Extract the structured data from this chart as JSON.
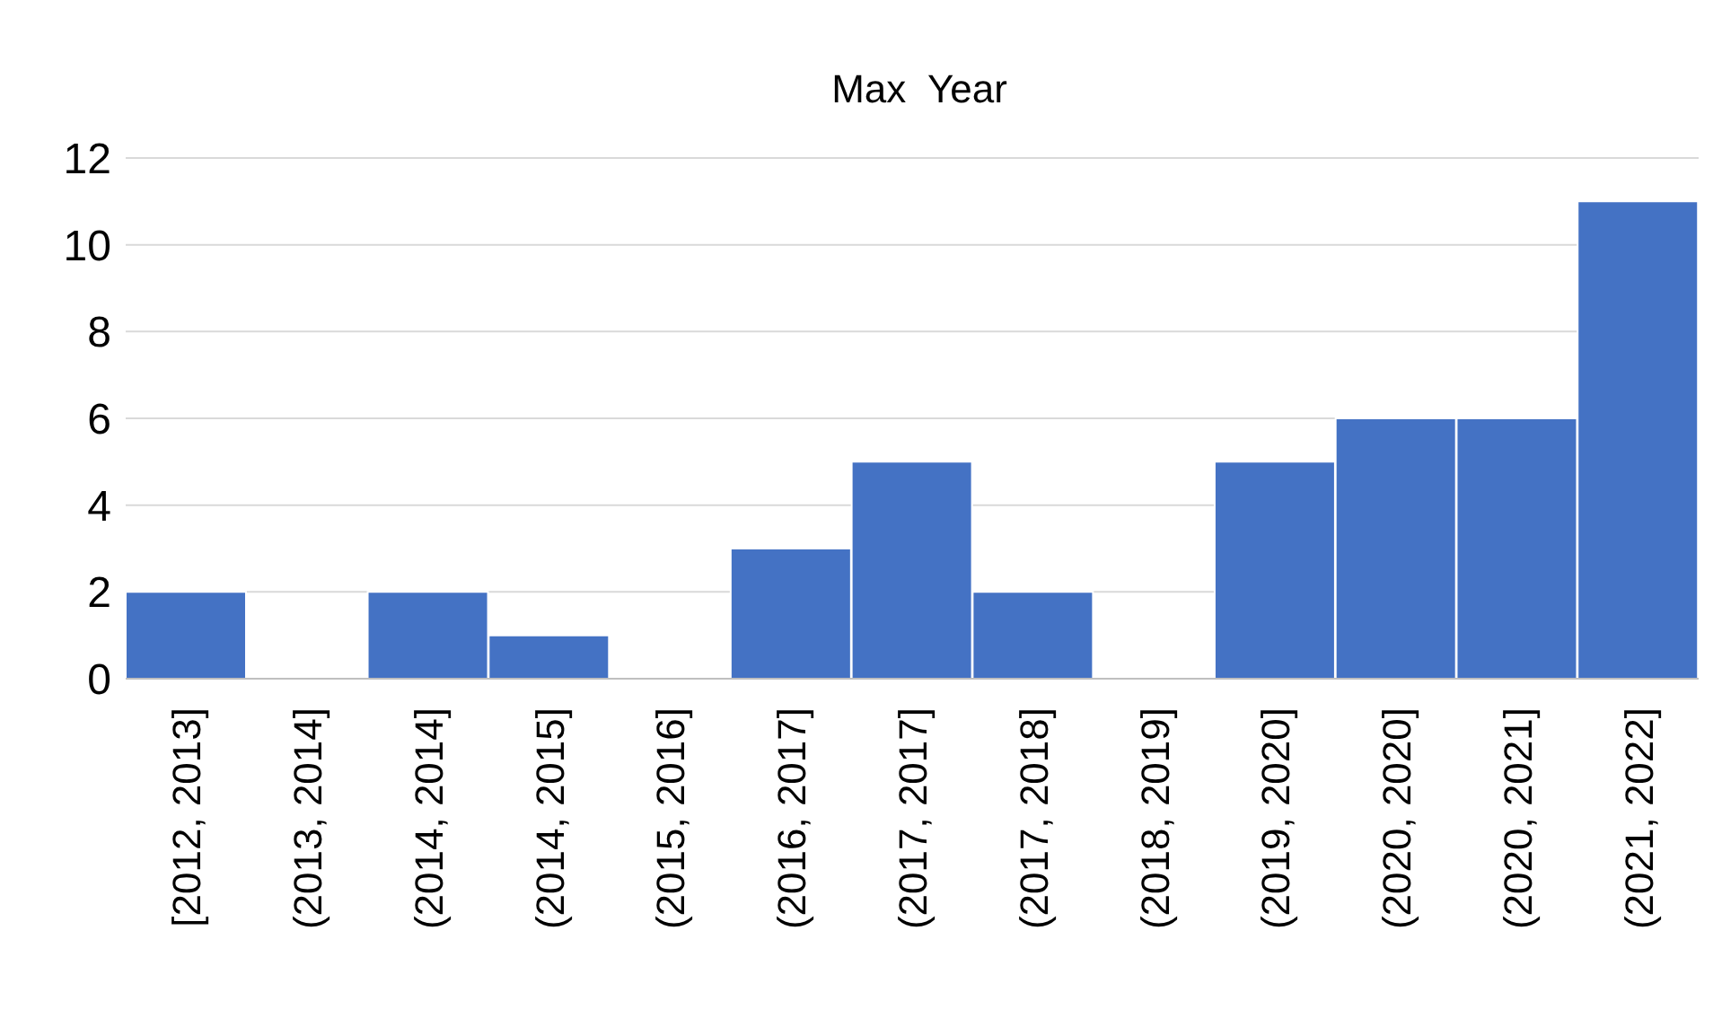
{
  "chart_data": {
    "type": "bar",
    "title": "Max  Year",
    "categories": [
      "[2012, 2013]",
      "(2013, 2014]",
      "(2014, 2014]",
      "(2014, 2015]",
      "(2015, 2016]",
      "(2016, 2017]",
      "(2017, 2017]",
      "(2017, 2018]",
      "(2018, 2019]",
      "(2019, 2020]",
      "(2020, 2020]",
      "(2020, 2021]",
      "(2021, 2022]"
    ],
    "values": [
      2,
      0,
      2,
      1,
      0,
      3,
      5,
      2,
      0,
      5,
      6,
      6,
      11
    ],
    "color": "#4472c4",
    "ylim": [
      0,
      12
    ],
    "yticks": [
      0,
      2,
      4,
      6,
      8,
      10,
      12
    ],
    "grid": "y"
  }
}
